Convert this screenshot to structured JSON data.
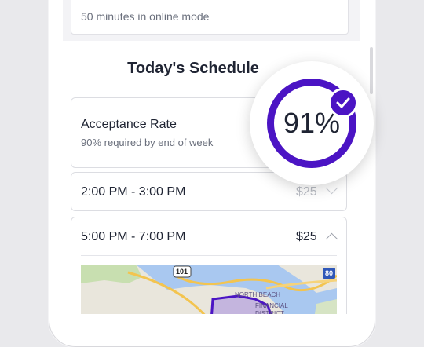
{
  "top_card": {
    "text": "50 minutes in online mode"
  },
  "schedule": {
    "title": "Today's Schedule",
    "acceptance": {
      "label": "Acceptance Rate",
      "sub": "90% required by end of week",
      "value_text": "91%",
      "value": 0.91
    },
    "slots": [
      {
        "time": "2:00 PM - 3:00 PM",
        "price": "$25",
        "expanded": false
      },
      {
        "time": "5:00 PM - 7:00 PM",
        "price": "$25",
        "expanded": true
      }
    ]
  },
  "map": {
    "labels": {
      "highway_101": "101",
      "highway_80": "80",
      "north_beach": "NORTH BEACH",
      "financial_district": "FINANCIAL DISTRICT"
    }
  },
  "colors": {
    "accent": "#4b14c4",
    "text": "#1f2433",
    "muted": "#6a6f7c"
  },
  "icons": {
    "check": "check-icon",
    "chevron_up": "chevron-up-icon",
    "chevron_down": "chevron-down-icon"
  }
}
